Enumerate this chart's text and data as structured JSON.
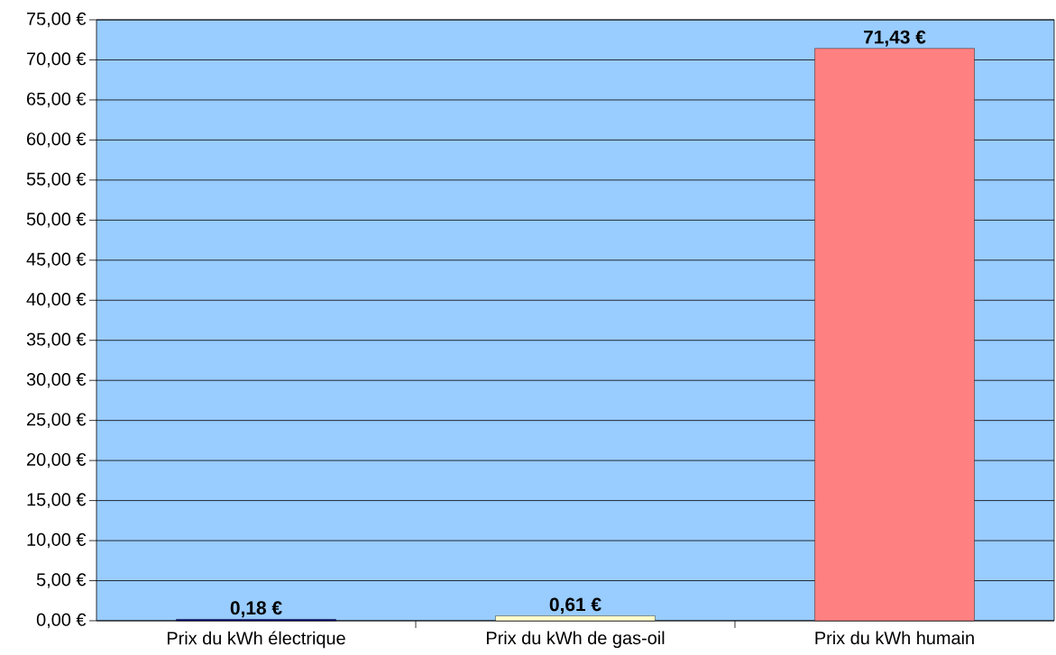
{
  "chart_data": {
    "type": "bar",
    "categories": [
      "Prix du kWh électrique",
      "Prix du kWh de gas-oil",
      "Prix du kWh humain"
    ],
    "values": [
      0.18,
      0.61,
      71.43
    ],
    "colors": [
      "#000080",
      "#ffffcc",
      "#ff8080"
    ],
    "value_labels": [
      "0,18 €",
      "0,61 €",
      "71,43 €"
    ],
    "ylim": [
      0,
      75
    ],
    "yticks": [
      {
        "value": 0,
        "label": "0,00 €"
      },
      {
        "value": 5,
        "label": "5,00 €"
      },
      {
        "value": 10,
        "label": "10,00 €"
      },
      {
        "value": 15,
        "label": "15,00 €"
      },
      {
        "value": 20,
        "label": "20,00 €"
      },
      {
        "value": 25,
        "label": "25,00 €"
      },
      {
        "value": 30,
        "label": "30,00 €"
      },
      {
        "value": 35,
        "label": "35,00 €"
      },
      {
        "value": 40,
        "label": "40,00 €"
      },
      {
        "value": 45,
        "label": "45,00 €"
      },
      {
        "value": 50,
        "label": "50,00 €"
      },
      {
        "value": 55,
        "label": "55,00 €"
      },
      {
        "value": 60,
        "label": "60,00 €"
      },
      {
        "value": 65,
        "label": "65,00 €"
      },
      {
        "value": 70,
        "label": "70,00 €"
      },
      {
        "value": 75,
        "label": "75,00 €"
      }
    ],
    "grid": "y"
  }
}
